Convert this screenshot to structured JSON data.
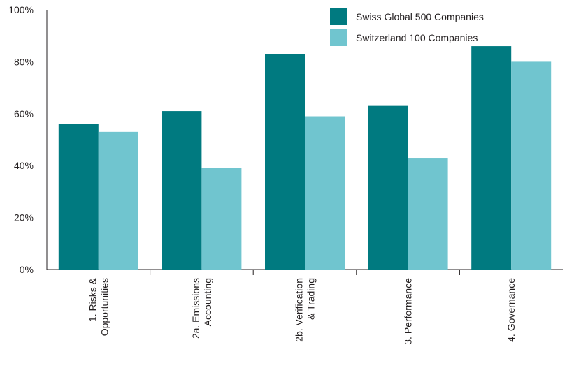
{
  "chart_data": {
    "type": "bar",
    "categories": [
      [
        "1. Risks &",
        "Opportunities"
      ],
      [
        "2a. Emissions",
        "Accounting"
      ],
      [
        "2b. Verification",
        "& Trading"
      ],
      [
        "3. Performance"
      ],
      [
        "4. Governance"
      ]
    ],
    "series": [
      {
        "name": "Swiss Global 500 Companies",
        "color": "#007a80",
        "values": [
          56,
          61,
          83,
          63,
          86
        ]
      },
      {
        "name": "Switzerland 100 Companies",
        "color": "#70c5cf",
        "values": [
          53,
          39,
          59,
          43,
          80
        ]
      }
    ],
    "yticks": [
      "0%",
      "20%",
      "40%",
      "60%",
      "80%",
      "100%"
    ],
    "ylim": [
      0,
      100
    ],
    "grid": false,
    "legend_position": "top-right",
    "title": "",
    "xlabel": "",
    "ylabel": ""
  }
}
